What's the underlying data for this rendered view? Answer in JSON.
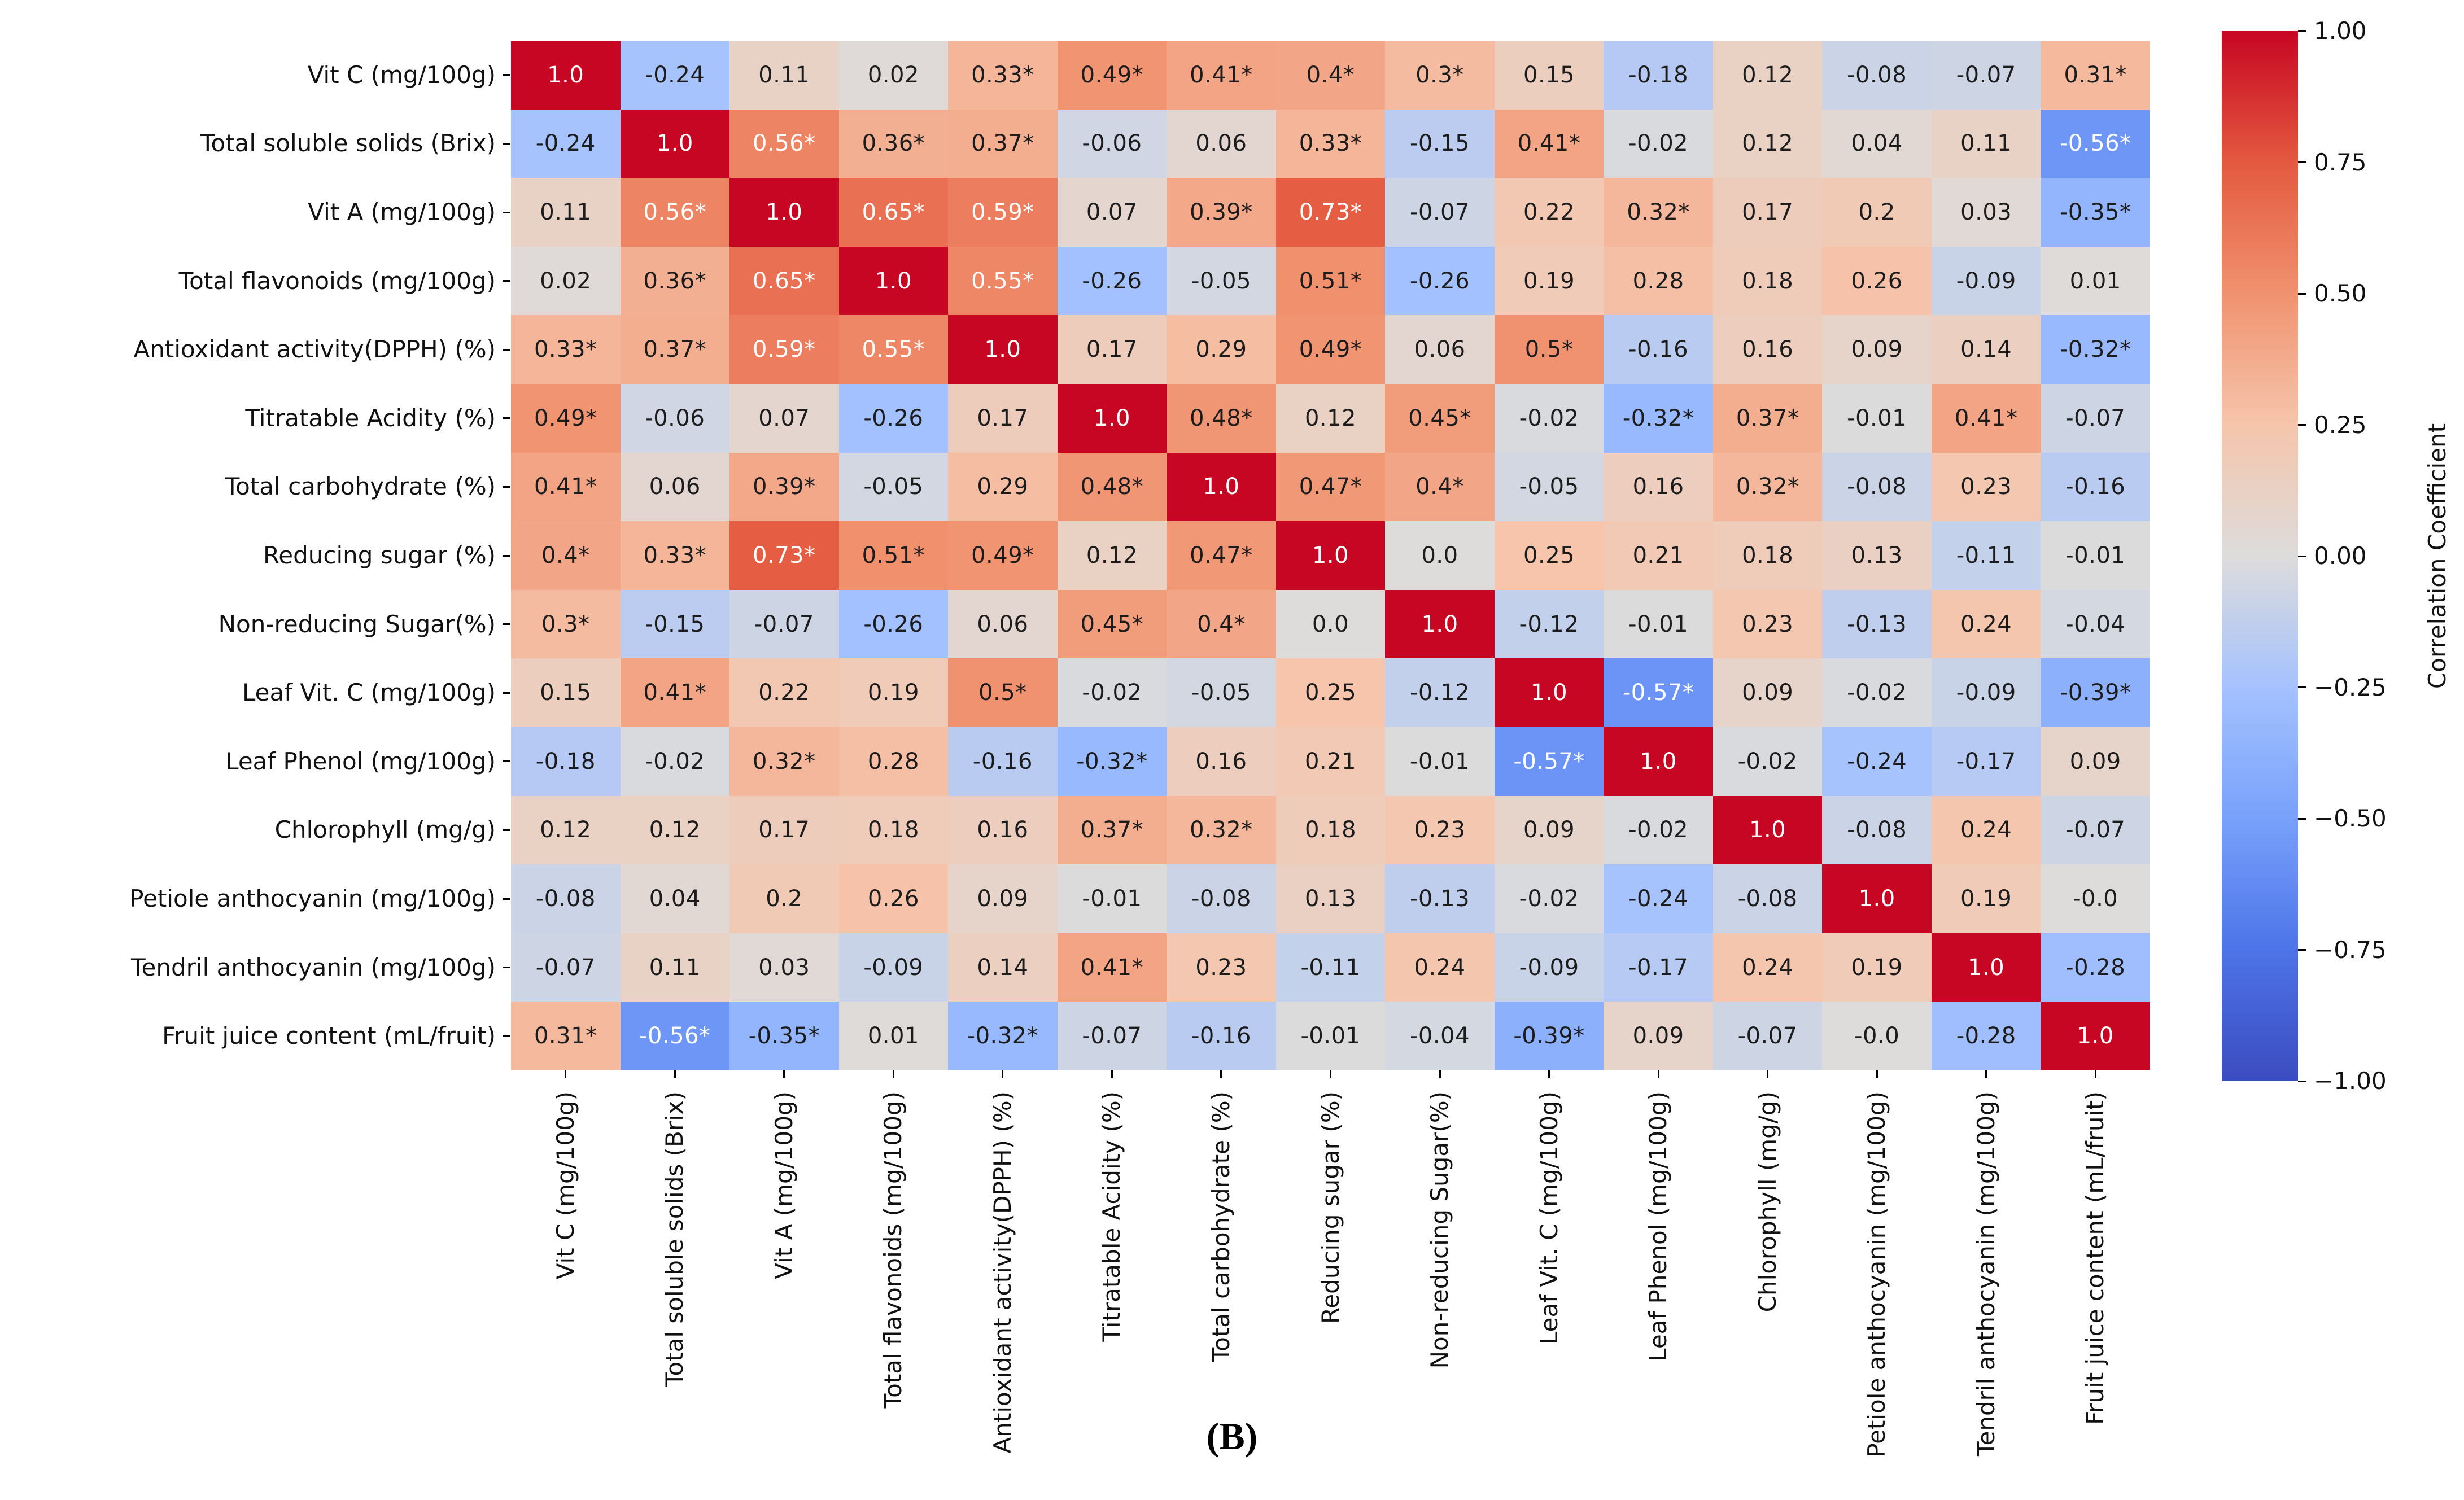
{
  "figure": {
    "caption": "(B)",
    "background": "#ffffff"
  },
  "colorbar": {
    "title": "Correlation Coefficient",
    "ticks": [
      "1.00",
      "0.75",
      "0.50",
      "0.25",
      "0.00",
      "−0.25",
      "−0.50",
      "−0.75",
      "−1.00"
    ],
    "min": -1,
    "max": 1
  },
  "heatmap": {
    "white_text_threshold": 0.55,
    "text_color_dark": "#1c1c1c",
    "text_color_light": "#ffffff",
    "colormap_stops": [
      {
        "t": 0.0,
        "c": "#3b4cc0"
      },
      {
        "t": 0.125,
        "c": "#4d74e8"
      },
      {
        "t": 0.25,
        "c": "#78a1fb"
      },
      {
        "t": 0.375,
        "c": "#a5c2fe"
      },
      {
        "t": 0.5,
        "c": "#dddcdb"
      },
      {
        "t": 0.625,
        "c": "#f6c5ac"
      },
      {
        "t": 0.75,
        "c": "#f0926f"
      },
      {
        "t": 0.875,
        "c": "#e4593f"
      },
      {
        "t": 1.0,
        "c": "#c70623"
      }
    ]
  },
  "chart_data": {
    "type": "heatmap",
    "colorscale": "coolwarm",
    "zlim": [
      -1,
      1
    ],
    "colorbar_label": "Correlation Coefficient",
    "categories": [
      "Vit C (mg/100g)",
      "Total soluble solids (Brix)",
      "Vit A (mg/100g)",
      "Total flavonoids (mg/100g)",
      "Antioxidant activity(DPPH) (%)",
      "Titratable Acidity (%)",
      "Total carbohydrate (%)",
      "Reducing sugar (%)",
      "Non-reducing Sugar(%)",
      "Leaf Vit. C (mg/100g)",
      "Leaf Phenol (mg/100g)",
      "Chlorophyll (mg/g)",
      "Petiole anthocyanin (mg/100g)",
      "Tendril anthocyanin (mg/100g)",
      "Fruit juice content (mL/fruit)"
    ],
    "values": [
      [
        1.0,
        -0.24,
        0.11,
        0.02,
        0.33,
        0.49,
        0.41,
        0.4,
        0.3,
        0.15,
        -0.18,
        0.12,
        -0.08,
        -0.07,
        0.31
      ],
      [
        -0.24,
        1.0,
        0.56,
        0.36,
        0.37,
        -0.06,
        0.06,
        0.33,
        -0.15,
        0.41,
        -0.02,
        0.12,
        0.04,
        0.11,
        -0.56
      ],
      [
        0.11,
        0.56,
        1.0,
        0.65,
        0.59,
        0.07,
        0.39,
        0.73,
        -0.07,
        0.22,
        0.32,
        0.17,
        0.2,
        0.03,
        -0.35
      ],
      [
        0.02,
        0.36,
        0.65,
        1.0,
        0.55,
        -0.26,
        -0.05,
        0.51,
        -0.26,
        0.19,
        0.28,
        0.18,
        0.26,
        -0.09,
        0.01
      ],
      [
        0.33,
        0.37,
        0.59,
        0.55,
        1.0,
        0.17,
        0.29,
        0.49,
        0.06,
        0.5,
        -0.16,
        0.16,
        0.09,
        0.14,
        -0.32
      ],
      [
        0.49,
        -0.06,
        0.07,
        -0.26,
        0.17,
        1.0,
        0.48,
        0.12,
        0.45,
        -0.02,
        -0.32,
        0.37,
        -0.01,
        0.41,
        -0.07
      ],
      [
        0.41,
        0.06,
        0.39,
        -0.05,
        0.29,
        0.48,
        1.0,
        0.47,
        0.4,
        -0.05,
        0.16,
        0.32,
        -0.08,
        0.23,
        -0.16
      ],
      [
        0.4,
        0.33,
        0.73,
        0.51,
        0.49,
        0.12,
        0.47,
        1.0,
        0.0,
        0.25,
        0.21,
        0.18,
        0.13,
        -0.11,
        -0.01
      ],
      [
        0.3,
        -0.15,
        -0.07,
        -0.26,
        0.06,
        0.45,
        0.4,
        0.0,
        1.0,
        -0.12,
        -0.01,
        0.23,
        -0.13,
        0.24,
        -0.04
      ],
      [
        0.15,
        0.41,
        0.22,
        0.19,
        0.5,
        -0.02,
        -0.05,
        0.25,
        -0.12,
        1.0,
        -0.57,
        0.09,
        -0.02,
        -0.09,
        -0.39
      ],
      [
        -0.18,
        -0.02,
        0.32,
        0.28,
        -0.16,
        -0.32,
        0.16,
        0.21,
        -0.01,
        -0.57,
        1.0,
        -0.02,
        -0.24,
        -0.17,
        0.09
      ],
      [
        0.12,
        0.12,
        0.17,
        0.18,
        0.16,
        0.37,
        0.32,
        0.18,
        0.23,
        0.09,
        -0.02,
        1.0,
        -0.08,
        0.24,
        -0.07
      ],
      [
        -0.08,
        0.04,
        0.2,
        0.26,
        0.09,
        -0.01,
        -0.08,
        0.13,
        -0.13,
        -0.02,
        -0.24,
        -0.08,
        1.0,
        0.19,
        -0.0
      ],
      [
        -0.07,
        0.11,
        0.03,
        -0.09,
        0.14,
        0.41,
        0.23,
        -0.11,
        0.24,
        -0.09,
        -0.17,
        0.24,
        0.19,
        1.0,
        -0.28
      ],
      [
        0.31,
        -0.56,
        -0.35,
        0.01,
        -0.32,
        -0.07,
        -0.16,
        -0.01,
        -0.04,
        -0.39,
        0.09,
        -0.07,
        -0.0,
        -0.28,
        1.0
      ]
    ],
    "annotations": [
      [
        "1.0",
        "-0.24",
        "0.11",
        "0.02",
        "0.33*",
        "0.49*",
        "0.41*",
        "0.4*",
        "0.3*",
        "0.15",
        "-0.18",
        "0.12",
        "-0.08",
        "-0.07",
        "0.31*"
      ],
      [
        "-0.24",
        "1.0",
        "0.56*",
        "0.36*",
        "0.37*",
        "-0.06",
        "0.06",
        "0.33*",
        "-0.15",
        "0.41*",
        "-0.02",
        "0.12",
        "0.04",
        "0.11",
        "-0.56*"
      ],
      [
        "0.11",
        "0.56*",
        "1.0",
        "0.65*",
        "0.59*",
        "0.07",
        "0.39*",
        "0.73*",
        "-0.07",
        "0.22",
        "0.32*",
        "0.17",
        "0.2",
        "0.03",
        "-0.35*"
      ],
      [
        "0.02",
        "0.36*",
        "0.65*",
        "1.0",
        "0.55*",
        "-0.26",
        "-0.05",
        "0.51*",
        "-0.26",
        "0.19",
        "0.28",
        "0.18",
        "0.26",
        "-0.09",
        "0.01"
      ],
      [
        "0.33*",
        "0.37*",
        "0.59*",
        "0.55*",
        "1.0",
        "0.17",
        "0.29",
        "0.49*",
        "0.06",
        "0.5*",
        "-0.16",
        "0.16",
        "0.09",
        "0.14",
        "-0.32*"
      ],
      [
        "0.49*",
        "-0.06",
        "0.07",
        "-0.26",
        "0.17",
        "1.0",
        "0.48*",
        "0.12",
        "0.45*",
        "-0.02",
        "-0.32*",
        "0.37*",
        "-0.01",
        "0.41*",
        "-0.07"
      ],
      [
        "0.41*",
        "0.06",
        "0.39*",
        "-0.05",
        "0.29",
        "0.48*",
        "1.0",
        "0.47*",
        "0.4*",
        "-0.05",
        "0.16",
        "0.32*",
        "-0.08",
        "0.23",
        "-0.16"
      ],
      [
        "0.4*",
        "0.33*",
        "0.73*",
        "0.51*",
        "0.49*",
        "0.12",
        "0.47*",
        "1.0",
        "0.0",
        "0.25",
        "0.21",
        "0.18",
        "0.13",
        "-0.11",
        "-0.01"
      ],
      [
        "0.3*",
        "-0.15",
        "-0.07",
        "-0.26",
        "0.06",
        "0.45*",
        "0.4*",
        "0.0",
        "1.0",
        "-0.12",
        "-0.01",
        "0.23",
        "-0.13",
        "0.24",
        "-0.04"
      ],
      [
        "0.15",
        "0.41*",
        "0.22",
        "0.19",
        "0.5*",
        "-0.02",
        "-0.05",
        "0.25",
        "-0.12",
        "1.0",
        "-0.57*",
        "0.09",
        "-0.02",
        "-0.09",
        "-0.39*"
      ],
      [
        "-0.18",
        "-0.02",
        "0.32*",
        "0.28",
        "-0.16",
        "-0.32*",
        "0.16",
        "0.21",
        "-0.01",
        "-0.57*",
        "1.0",
        "-0.02",
        "-0.24",
        "-0.17",
        "0.09"
      ],
      [
        "0.12",
        "0.12",
        "0.17",
        "0.18",
        "0.16",
        "0.37*",
        "0.32*",
        "0.18",
        "0.23",
        "0.09",
        "-0.02",
        "1.0",
        "-0.08",
        "0.24",
        "-0.07"
      ],
      [
        "-0.08",
        "0.04",
        "0.2",
        "0.26",
        "0.09",
        "-0.01",
        "-0.08",
        "0.13",
        "-0.13",
        "-0.02",
        "-0.24",
        "-0.08",
        "1.0",
        "0.19",
        "-0.0"
      ],
      [
        "-0.07",
        "0.11",
        "0.03",
        "-0.09",
        "0.14",
        "0.41*",
        "0.23",
        "-0.11",
        "0.24",
        "-0.09",
        "-0.17",
        "0.24",
        "0.19",
        "1.0",
        "-0.28"
      ],
      [
        "0.31*",
        "-0.56*",
        "-0.35*",
        "0.01",
        "-0.32*",
        "-0.07",
        "-0.16",
        "-0.01",
        "-0.04",
        "-0.39*",
        "0.09",
        "-0.07",
        "-0.0",
        "-0.28",
        "1.0"
      ]
    ]
  }
}
